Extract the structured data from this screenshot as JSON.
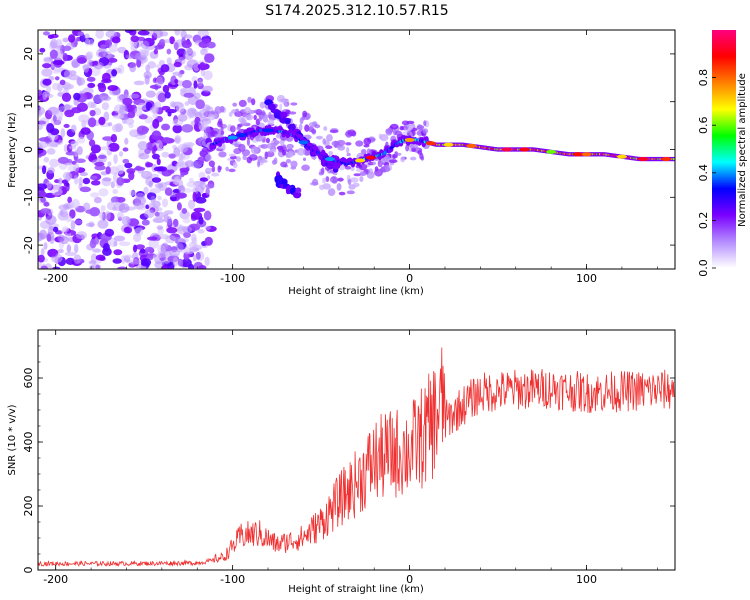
{
  "title": "S174.2025.312.10.57.R15",
  "chart_data": [
    {
      "type": "heatmap",
      "name": "spectrogram",
      "xlabel": "Height of straight line (km)",
      "ylabel": "Frequency (Hz)",
      "xlim": [
        -210,
        150
      ],
      "ylim": [
        -25,
        25
      ],
      "xticks": [
        -200,
        -100,
        0,
        100
      ],
      "yticks": [
        20,
        10,
        0,
        -10,
        -20
      ],
      "colorbar": {
        "label": "Normalized spectral amplitude",
        "range": [
          0,
          1
        ],
        "ticks": [
          "0.0",
          "0.2",
          "0.4",
          "0.6",
          "0.8"
        ],
        "tick_values": [
          0.0,
          0.2,
          0.4,
          0.6,
          0.8
        ],
        "colormap": [
          "#ffffff",
          "#b48cff",
          "#7a00ff",
          "#0000ff",
          "#00ffff",
          "#00ff00",
          "#ffff00",
          "#ff8000",
          "#ff0000",
          "#ff0080"
        ]
      },
      "noise_region": {
        "x_range": [
          -210,
          -112
        ],
        "description_amp": 0.3
      },
      "ridge": [
        {
          "x": -112,
          "f": 1
        },
        {
          "x": -105,
          "f": 2
        },
        {
          "x": -95,
          "f": 3
        },
        {
          "x": -85,
          "f": 4
        },
        {
          "x": -75,
          "f": 4
        },
        {
          "x": -65,
          "f": 3
        },
        {
          "x": -55,
          "f": 0
        },
        {
          "x": -45,
          "f": -2
        },
        {
          "x": -35,
          "f": -3
        },
        {
          "x": -25,
          "f": -2
        },
        {
          "x": -15,
          "f": -1
        },
        {
          "x": -8,
          "f": 1
        },
        {
          "x": -3,
          "f": 2
        },
        {
          "x": 5,
          "f": 2
        },
        {
          "x": 15,
          "f": 1
        },
        {
          "x": 30,
          "f": 1
        },
        {
          "x": 50,
          "f": 0
        },
        {
          "x": 70,
          "f": 0
        },
        {
          "x": 90,
          "f": -1
        },
        {
          "x": 110,
          "f": -1
        },
        {
          "x": 130,
          "f": -2
        },
        {
          "x": 150,
          "f": -2
        }
      ],
      "secondary_branch": [
        {
          "x": -80,
          "f": 10
        },
        {
          "x": -70,
          "f": 6
        },
        {
          "x": -60,
          "f": 2
        },
        {
          "x": -50,
          "f": -2
        },
        {
          "x": -40,
          "f": -4
        }
      ],
      "lower_branch": [
        {
          "x": -75,
          "f": -6
        },
        {
          "x": -70,
          "f": -8
        },
        {
          "x": -63,
          "f": -9
        }
      ]
    },
    {
      "type": "line",
      "name": "snr",
      "xlabel": "Height of straight line (km)",
      "ylabel": "SNR (10 * v/v)",
      "xlim": [
        -210,
        150
      ],
      "ylim": [
        0,
        750
      ],
      "xticks": [
        -200,
        -100,
        0,
        100
      ],
      "yticks": [
        0,
        200,
        400,
        600
      ],
      "color": "#f03030",
      "envelope": [
        {
          "x": -210,
          "y": 20
        },
        {
          "x": -160,
          "y": 20
        },
        {
          "x": -120,
          "y": 22
        },
        {
          "x": -105,
          "y": 35
        },
        {
          "x": -95,
          "y": 95
        },
        {
          "x": -85,
          "y": 100
        },
        {
          "x": -75,
          "y": 70
        },
        {
          "x": -60,
          "y": 90
        },
        {
          "x": -50,
          "y": 130
        },
        {
          "x": -40,
          "y": 190
        },
        {
          "x": -30,
          "y": 240
        },
        {
          "x": -20,
          "y": 300
        },
        {
          "x": -10,
          "y": 320
        },
        {
          "x": 0,
          "y": 330
        },
        {
          "x": 10,
          "y": 380
        },
        {
          "x": 20,
          "y": 470
        },
        {
          "x": 30,
          "y": 520
        },
        {
          "x": 40,
          "y": 560
        },
        {
          "x": 60,
          "y": 570
        },
        {
          "x": 80,
          "y": 575
        },
        {
          "x": 100,
          "y": 560
        },
        {
          "x": 120,
          "y": 565
        },
        {
          "x": 150,
          "y": 570
        }
      ]
    }
  ]
}
